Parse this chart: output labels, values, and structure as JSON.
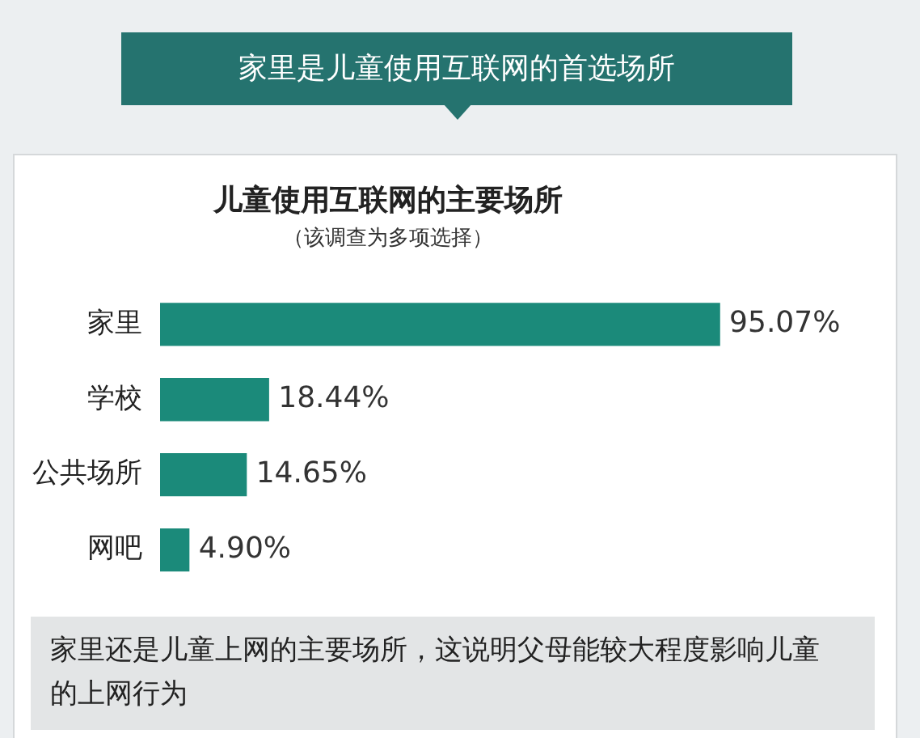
{
  "chart_data": {
    "type": "bar",
    "orientation": "horizontal",
    "title": "儿童使用互联网的主要场所",
    "subtitle": "（该调查为多项选择）",
    "categories": [
      "家里",
      "学校",
      "公共场所",
      "网吧"
    ],
    "values": [
      95.07,
      18.44,
      14.65,
      4.9
    ],
    "value_labels": [
      "95.07%",
      "18.44%",
      "14.65%",
      "4.90%"
    ],
    "color": "#1b8a7a",
    "annotations": [
      "家里是儿童使用互联网的首选场所",
      "家里还是儿童上网的主要场所，这说明父母能较大程度影响儿童的上网行为"
    ],
    "legend": false
  }
}
